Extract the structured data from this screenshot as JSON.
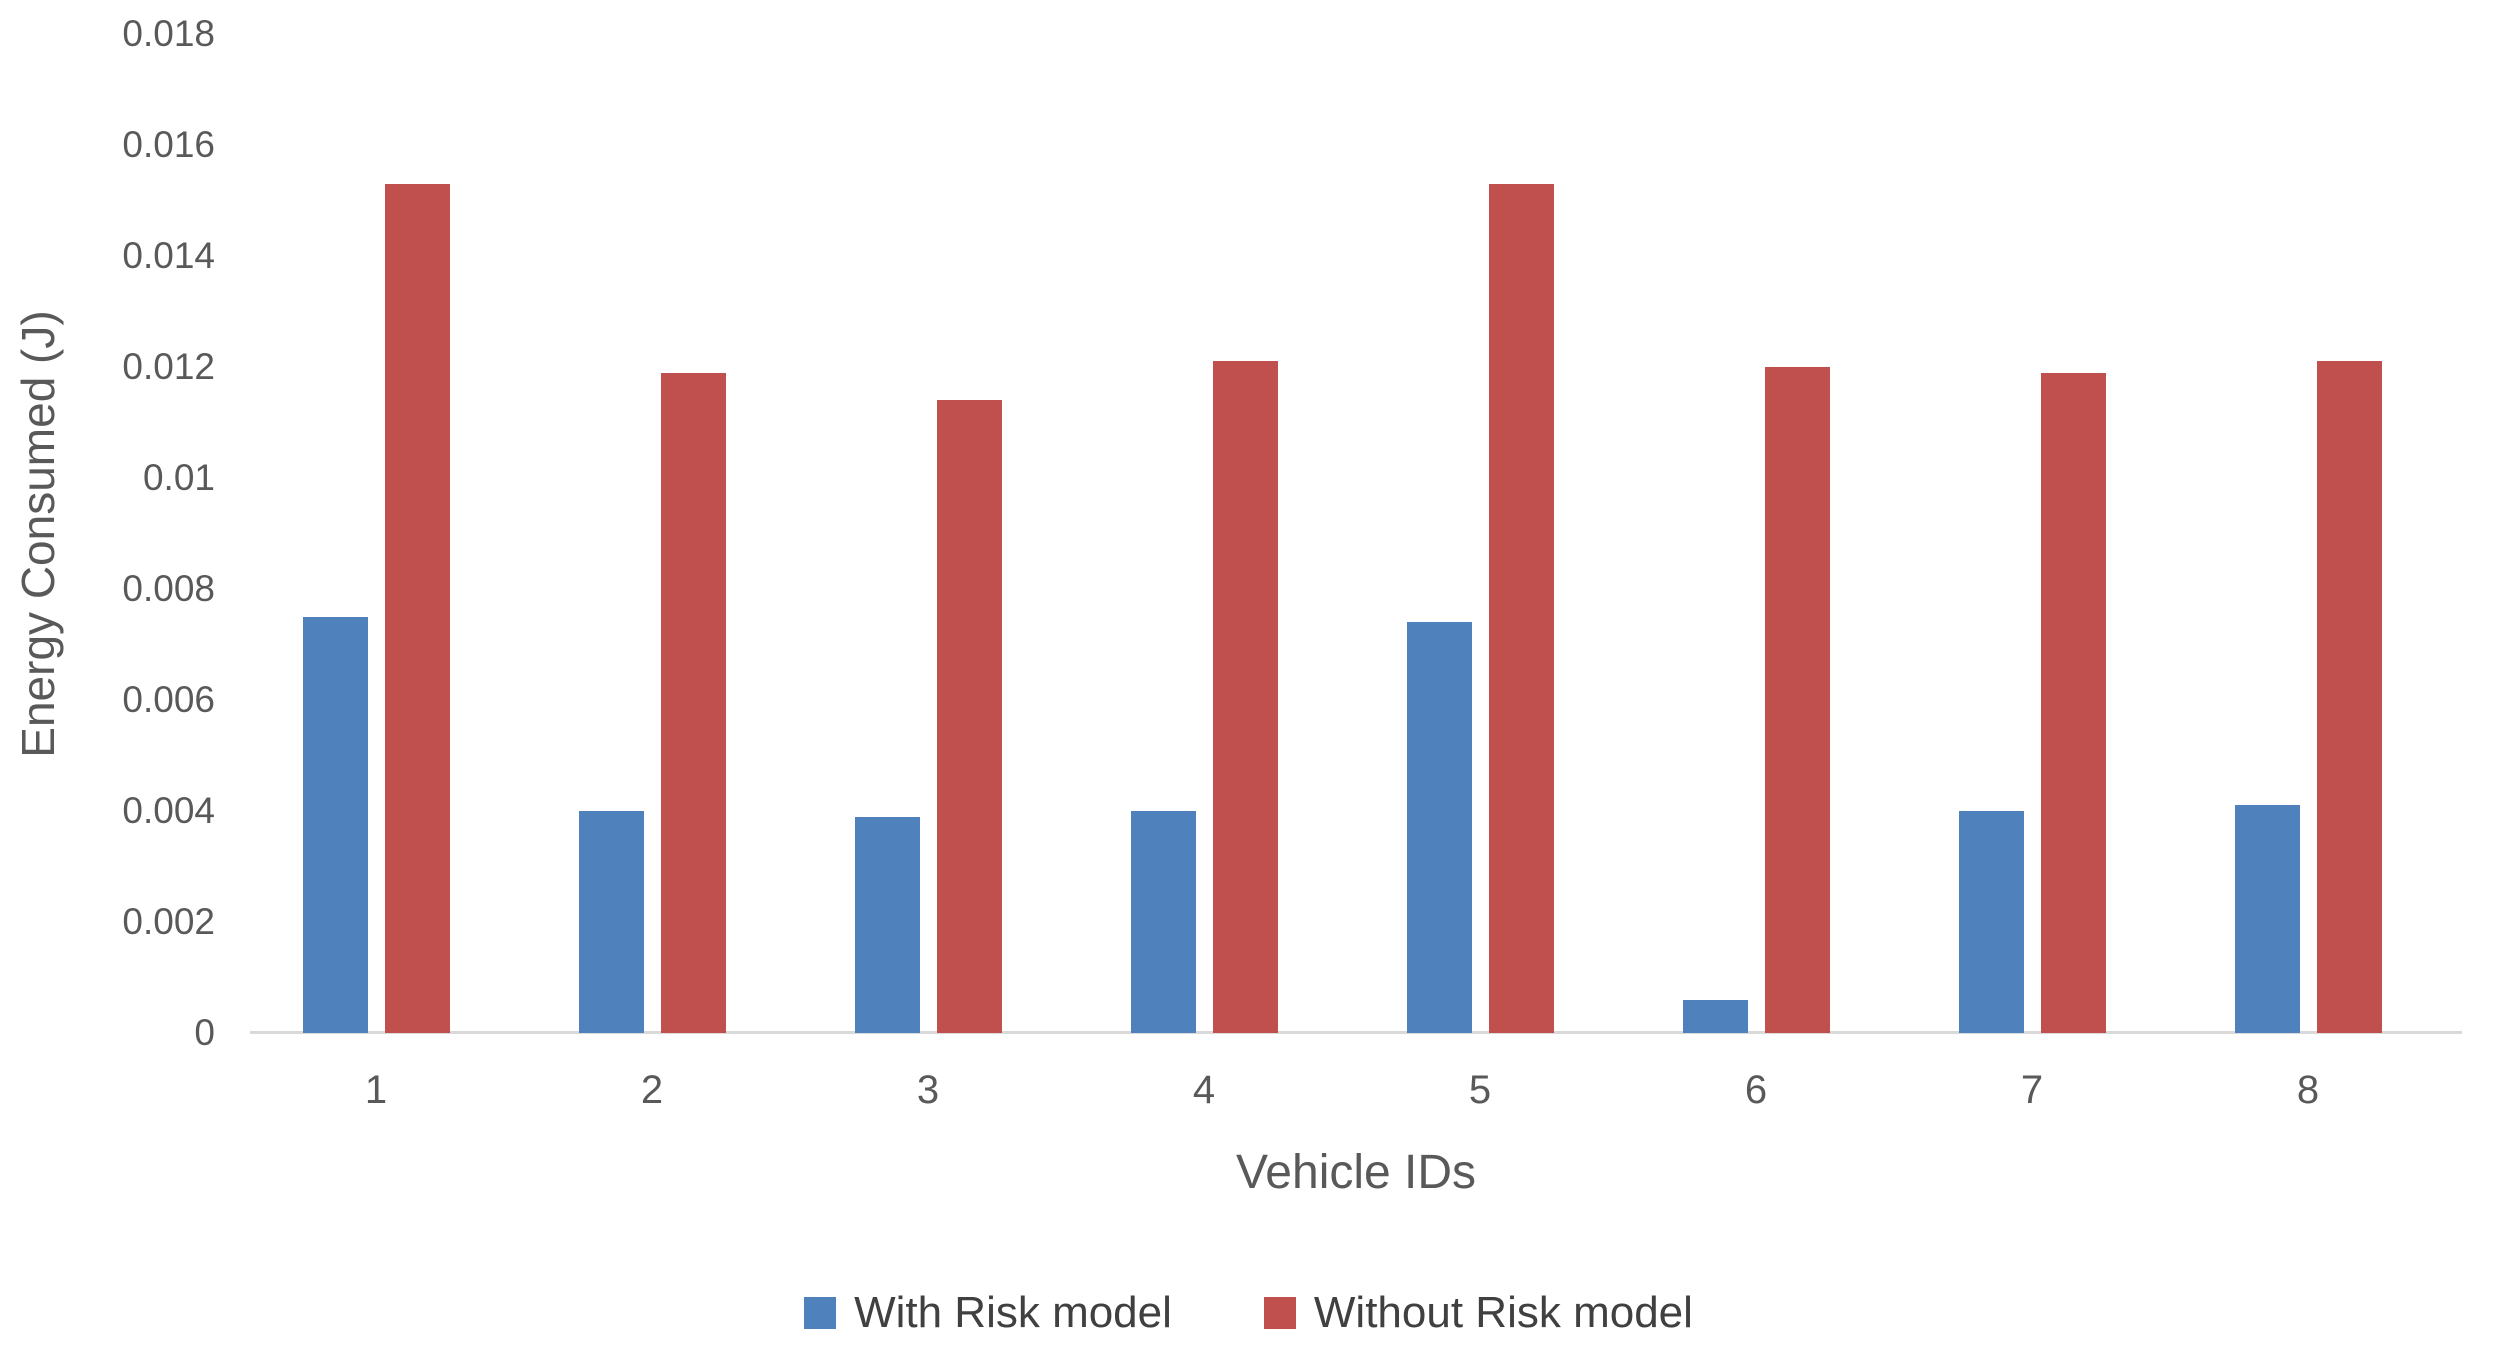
{
  "chart_data": {
    "type": "bar",
    "title": "",
    "xlabel": "Vehicle IDs",
    "ylabel": "Energy Consumed (J)",
    "categories": [
      "1",
      "2",
      "3",
      "4",
      "5",
      "6",
      "7",
      "8"
    ],
    "series": [
      {
        "name": "With Risk model",
        "color": "#4F81BD",
        "values": [
          0.0075,
          0.004,
          0.0039,
          0.004,
          0.0074,
          0.0006,
          0.004,
          0.0041
        ]
      },
      {
        "name": "Without Risk model",
        "color": "#C0504D",
        "values": [
          0.0153,
          0.0119,
          0.0114,
          0.0121,
          0.0153,
          0.012,
          0.0119,
          0.0121
        ]
      }
    ],
    "y_ticks": [
      "0",
      "0.002",
      "0.004",
      "0.006",
      "0.008",
      "0.01",
      "0.012",
      "0.014",
      "0.016",
      "0.018"
    ],
    "ylim": [
      0,
      0.018
    ],
    "y_tick_interval": 0.002,
    "grid": false,
    "legend_position": "bottom"
  },
  "colors": {
    "text": "#595959",
    "axis_line": "#D9D9D9",
    "background": "#FFFFFF"
  }
}
